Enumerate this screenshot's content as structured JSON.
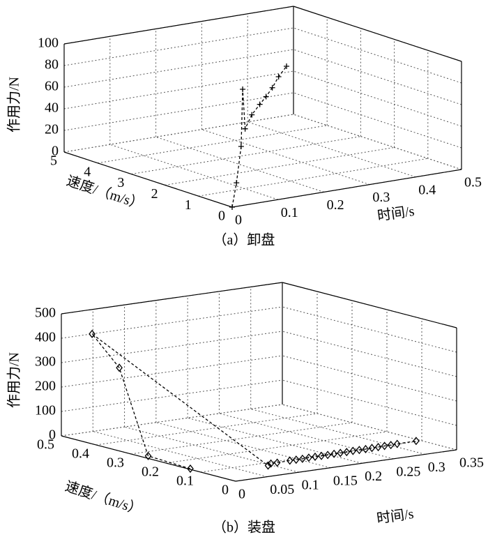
{
  "chart_data": [
    {
      "type": "scatter3d",
      "caption": "（a）卸盘",
      "xlabel": "时间/s",
      "ylabel": "速度/（m/s）",
      "zlabel": "作用力/N",
      "marker": "+",
      "color": "#000000",
      "grid": true,
      "x": [
        0,
        0.09,
        0.21,
        0.25,
        0.27,
        0.27,
        0.28,
        0.29,
        0.3,
        0.31,
        0.32
      ],
      "y": [
        0,
        1.1,
        2.6,
        3.1,
        3.3,
        3.1,
        3.0,
        2.95,
        2.9,
        2.85,
        2.75
      ],
      "z": [
        0,
        5,
        15,
        60,
        20,
        35,
        45,
        52,
        60,
        70,
        80
      ],
      "xlim": [
        0,
        0.5
      ],
      "xticks": [
        0,
        0.1,
        0.2,
        0.3,
        0.4,
        0.5
      ],
      "ylim": [
        0,
        5
      ],
      "yticks": [
        0,
        1,
        2,
        3,
        4,
        5
      ],
      "zlim": [
        0,
        100
      ],
      "zticks": [
        0,
        20,
        40,
        60,
        80,
        100
      ]
    },
    {
      "type": "scatter3d",
      "caption": "（b）装盘",
      "xlabel": "时间/s",
      "ylabel": "速度/（m/s）",
      "zlabel": "作用力/N",
      "marker": "diamond",
      "color": "#000000",
      "grid": true,
      "x": [
        0,
        0.005,
        0.02,
        0.01,
        0.09,
        0.1,
        0.11,
        0.13,
        0.14,
        0.15,
        0.16,
        0.17,
        0.18,
        0.19,
        0.2,
        0.21,
        0.22,
        0.23,
        0.24,
        0.25,
        0.26,
        0.27,
        0.28,
        0.29,
        0.3,
        0.33
      ],
      "y": [
        0.13,
        0.26,
        0.37,
        0.43,
        0.07,
        0.08,
        0.08,
        0.08,
        0.08,
        0.08,
        0.08,
        0.08,
        0.08,
        0.08,
        0.08,
        0.08,
        0.08,
        0.08,
        0.08,
        0.08,
        0.08,
        0.08,
        0.08,
        0.08,
        0.08,
        0.08
      ],
      "z": [
        3,
        5,
        320,
        440,
        5,
        6,
        6,
        7,
        7,
        7,
        8,
        8,
        8,
        8,
        9,
        9,
        9,
        10,
        10,
        10,
        11,
        11,
        12,
        12,
        13,
        14
      ],
      "xlim": [
        0,
        0.35
      ],
      "xticks": [
        0,
        0.05,
        0.1,
        0.15,
        0.2,
        0.25,
        0.3,
        0.35
      ],
      "ylim": [
        0,
        0.5
      ],
      "yticks": [
        0,
        0.1,
        0.2,
        0.3,
        0.4,
        0.5
      ],
      "zlim": [
        0,
        500
      ],
      "zticks": [
        0,
        100,
        200,
        300,
        400,
        500
      ]
    }
  ]
}
